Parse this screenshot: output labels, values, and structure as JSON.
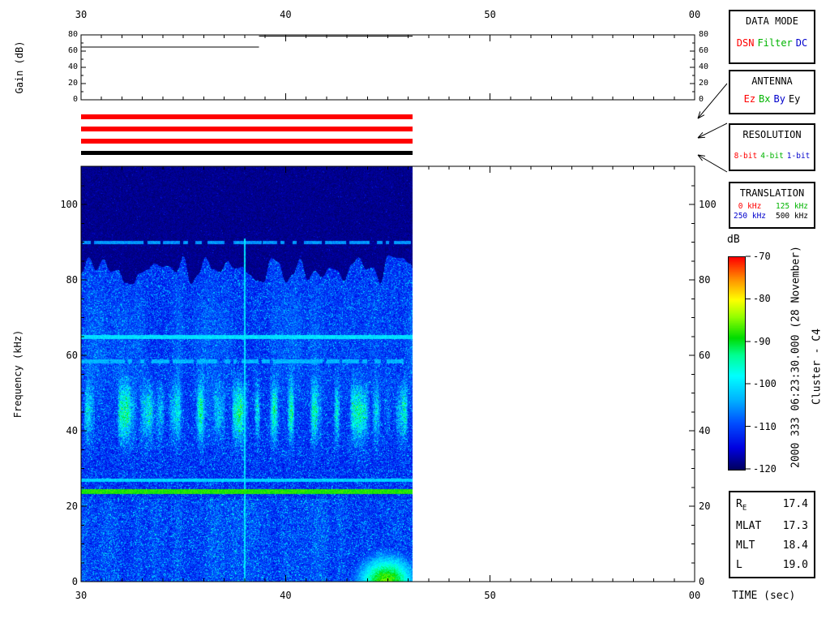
{
  "gain_panel": {
    "ylabel": "Gain (dB)",
    "yticks": [
      0,
      20,
      40,
      60,
      80
    ],
    "range": [
      0,
      80
    ]
  },
  "spectrogram": {
    "ylabel": "Frequency (kHz)",
    "yticks": [
      0,
      20,
      40,
      60,
      80,
      100
    ]
  },
  "time_axis": {
    "label": "TIME (sec)",
    "range": [
      30,
      60
    ],
    "minor_step": 1,
    "ticks": [
      {
        "value": 30,
        "label": "30"
      },
      {
        "value": 40,
        "label": "40"
      },
      {
        "value": 50,
        "label": "50"
      },
      {
        "value": 60,
        "label": "00"
      }
    ]
  },
  "panels": {
    "data_mode": {
      "title": "DATA MODE",
      "items": [
        {
          "label": "DSN",
          "color": "#ff0000"
        },
        {
          "label": "Filter",
          "color": "#00b400"
        },
        {
          "label": "DC",
          "color": "#0000cc"
        }
      ]
    },
    "antenna": {
      "title": "ANTENNA",
      "items": [
        {
          "label": "Ez",
          "color": "#ff0000"
        },
        {
          "label": "Bx",
          "color": "#00b400"
        },
        {
          "label": "By",
          "color": "#0000cc"
        },
        {
          "label": "Ey",
          "color": "#000000"
        }
      ]
    },
    "resolution": {
      "title": "RESOLUTION",
      "items": [
        {
          "label": "8-bit",
          "color": "#ff0000"
        },
        {
          "label": "4-bit",
          "color": "#00b400"
        },
        {
          "label": "1-bit",
          "color": "#0000cc"
        }
      ]
    },
    "translation": {
      "title": "TRANSLATION",
      "items": [
        {
          "label": "0 kHz",
          "color": "#ff0000"
        },
        {
          "label": "125 kHz",
          "color": "#00b400"
        },
        {
          "label": "250 kHz",
          "color": "#0000cc"
        },
        {
          "label": "500 kHz",
          "color": "#000000"
        }
      ]
    }
  },
  "status_bars": [
    {
      "name": "data-mode-bar",
      "color": "#ff0000"
    },
    {
      "name": "antenna-bar",
      "color": "#ff0000"
    },
    {
      "name": "resolution-bar",
      "color": "#ff0000"
    },
    {
      "name": "translation-bar",
      "color": "#000000"
    }
  ],
  "colorbar": {
    "label": "dB",
    "ticks": [
      -70,
      -80,
      -90,
      -100,
      -110,
      -120
    ],
    "range_db": [
      -70,
      -120
    ],
    "stops": [
      [
        0.0,
        "#000060"
      ],
      [
        0.1,
        "#0000e0"
      ],
      [
        0.22,
        "#0050ff"
      ],
      [
        0.33,
        "#00b4ff"
      ],
      [
        0.44,
        "#00ffff"
      ],
      [
        0.54,
        "#00ff90"
      ],
      [
        0.62,
        "#00dc00"
      ],
      [
        0.72,
        "#96ff00"
      ],
      [
        0.8,
        "#ffff00"
      ],
      [
        0.9,
        "#ff8c00"
      ],
      [
        1.0,
        "#ff0000"
      ]
    ]
  },
  "side_labels": {
    "datetime": "2000 333 06:23:30.000 (28 November)",
    "spacecraft": "Cluster - C4"
  },
  "ephemeris": {
    "rows": [
      {
        "label": "R",
        "label_sub": "E",
        "value": "17.4"
      },
      {
        "label": "MLAT",
        "label_sub": "",
        "value": "17.3"
      },
      {
        "label": "MLT",
        "label_sub": "",
        "value": "18.4"
      },
      {
        "label": "L",
        "label_sub": "",
        "value": "19.0"
      }
    ]
  },
  "chart_data": [
    {
      "type": "line",
      "title": "Receiver gain vs time",
      "xlabel": "TIME (sec)",
      "ylabel": "Gain (dB)",
      "xlim": [
        30,
        60
      ],
      "ylim": [
        0,
        80
      ],
      "series": [
        {
          "name": "gain",
          "segments": [
            {
              "t": [
                30.0,
                38.7
              ],
              "gain_db": 65.0
            },
            {
              "t": [
                38.7,
                46.2
              ],
              "gain_db": 78.5
            }
          ]
        }
      ]
    },
    {
      "type": "heatmap",
      "title": "Cluster C4 WBD spectrogram",
      "xlabel": "TIME (sec)",
      "ylabel": "Frequency (kHz)",
      "xlim": [
        30,
        60
      ],
      "ylim": [
        0,
        110
      ],
      "data_extent_sec": [
        30,
        46.2
      ],
      "color_scale_db": [
        -120,
        -70
      ],
      "noise_floor_db": -114,
      "upper_cutoff_khz": 82,
      "features": [
        {
          "type": "hline",
          "freq_khz": 90,
          "db": -106,
          "width_khz": 0.45,
          "intermittent": true
        },
        {
          "type": "hline",
          "freq_khz": 65,
          "db": -101,
          "width_khz": 0.5,
          "intermittent": false
        },
        {
          "type": "hline",
          "freq_khz": 58.5,
          "db": -104,
          "width_khz": 0.45,
          "intermittent": true
        },
        {
          "type": "hline",
          "freq_khz": 27,
          "db": -102,
          "width_khz": 0.5,
          "intermittent": false
        },
        {
          "type": "hline",
          "freq_khz": 24,
          "db": -89,
          "width_khz": 0.7,
          "intermittent": false
        },
        {
          "type": "vline",
          "time_sec": 38,
          "db": -101,
          "max_freq_khz": 91
        },
        {
          "type": "band",
          "freq_center_khz": 45,
          "freq_sigma_khz": 5,
          "peak_db": -94,
          "patchy": true
        },
        {
          "type": "blob",
          "time_center_sec": 44.9,
          "time_sigma_sec": 1.0,
          "freq_khz": [
            0,
            9
          ],
          "peak_db": -89
        }
      ]
    }
  ]
}
